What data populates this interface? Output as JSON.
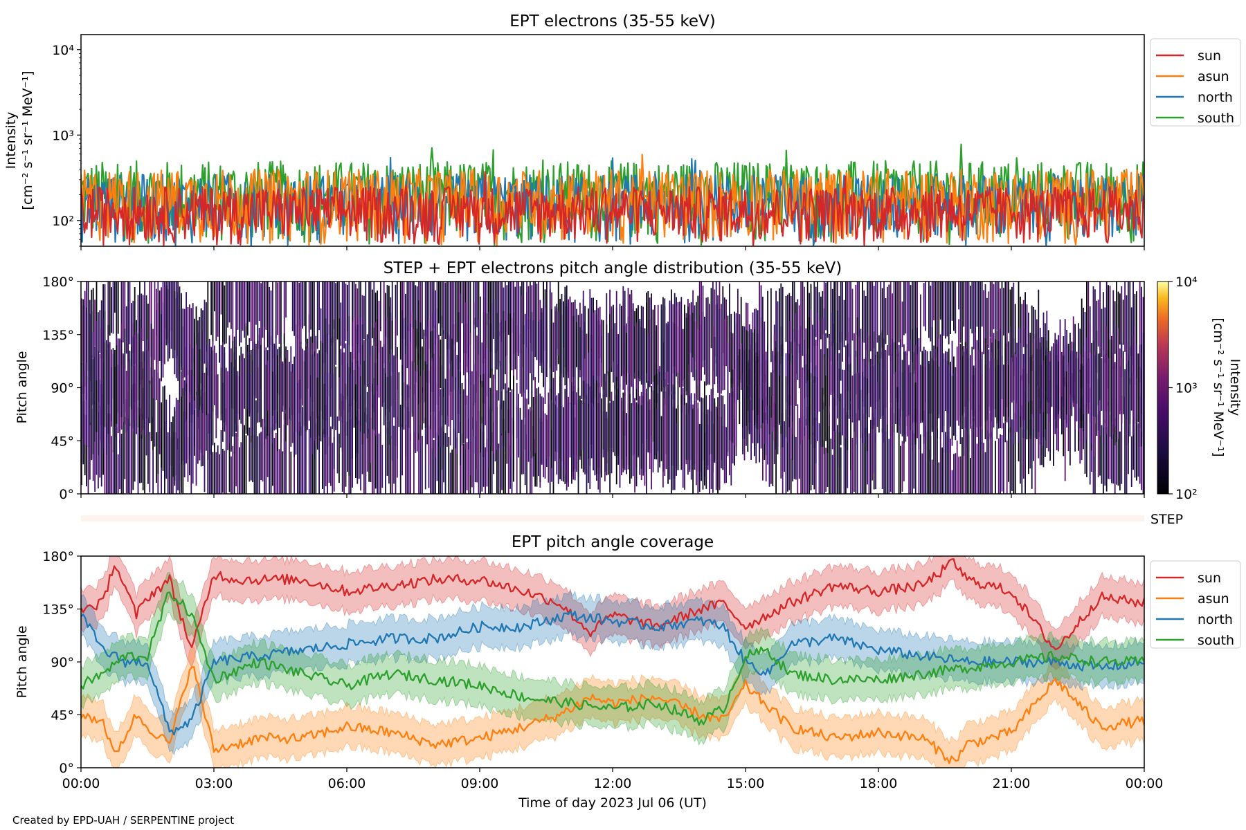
{
  "footer": "Created by EPD-UAH / SERPENTINE project",
  "x_axis": {
    "label": "Time of day 2023 Jul 06 (UT)",
    "ticks": [
      "00:00",
      "03:00",
      "06:00",
      "09:00",
      "12:00",
      "15:00",
      "18:00",
      "21:00",
      "00:00"
    ],
    "range_hours": [
      0,
      24
    ]
  },
  "colors": {
    "sun": "#d62728",
    "asun": "#ff7f0e",
    "north": "#1f77b4",
    "south": "#2ca02c"
  },
  "chart_data": [
    {
      "type": "line",
      "title": "EPT electrons (35-55 keV)",
      "ylabel_line1": "Intensity",
      "ylabel_line2": "[cm⁻² s⁻¹ sr⁻¹ MeV⁻¹]",
      "yscale": "log",
      "ylim": [
        50,
        15000
      ],
      "yticks": [
        {
          "value": 100,
          "label": "10²"
        },
        {
          "value": 1000,
          "label": "10³"
        },
        {
          "value": 10000,
          "label": "10⁴"
        }
      ],
      "legend_position": "outside-right-top",
      "series": [
        {
          "name": "sun",
          "color": "#d62728",
          "typical_range": [
            50,
            250
          ]
        },
        {
          "name": "asun",
          "color": "#ff7f0e",
          "typical_range": [
            50,
            400
          ]
        },
        {
          "name": "north",
          "color": "#1f77b4",
          "typical_range": [
            50,
            350
          ]
        },
        {
          "name": "south",
          "color": "#2ca02c",
          "typical_range": [
            50,
            500
          ]
        }
      ]
    },
    {
      "type": "heatmap",
      "title": "STEP + EPT electrons pitch angle distribution (35-55 keV)",
      "ylabel": "Pitch angle",
      "ylim": [
        0,
        180
      ],
      "yticks": [
        "0°",
        "45°",
        "90°",
        "135°",
        "180°"
      ],
      "colorbar": {
        "label_line1": "Intensity",
        "label_line2": "[cm⁻² s⁻¹ sr⁻¹ MeV⁻¹]",
        "range": [
          100,
          10000
        ],
        "ticks": [
          "10²",
          "10³",
          "10⁴"
        ]
      },
      "step_label": "STEP"
    },
    {
      "type": "line",
      "title": "EPT pitch angle coverage",
      "ylabel": "Pitch angle",
      "ylim": [
        0,
        180
      ],
      "yticks": [
        "0°",
        "45°",
        "90°",
        "135°",
        "180°"
      ],
      "legend_position": "outside-right-top",
      "series": [
        {
          "name": "sun",
          "color": "#d62728",
          "x": [
            0,
            0.5,
            0.75,
            1.25,
            1.5,
            2,
            2.5,
            3,
            3.5,
            4,
            5,
            6,
            7,
            8,
            9,
            10,
            10.8,
            11.5,
            12,
            13,
            14,
            14.5,
            15,
            16,
            17,
            18,
            19,
            19.7,
            20,
            21,
            22,
            23,
            24
          ],
          "y": [
            135,
            140,
            175,
            130,
            145,
            160,
            100,
            165,
            160,
            160,
            160,
            150,
            155,
            160,
            160,
            150,
            140,
            115,
            130,
            120,
            135,
            140,
            120,
            140,
            155,
            150,
            155,
            175,
            160,
            150,
            100,
            145,
            140
          ]
        },
        {
          "name": "asun",
          "color": "#ff7f0e",
          "x": [
            0,
            0.5,
            0.75,
            1.25,
            1.5,
            2,
            2.5,
            3,
            3.5,
            4,
            5,
            6,
            7,
            8,
            9,
            10,
            10.8,
            11.5,
            12,
            13,
            14,
            14.5,
            15,
            16,
            17,
            18,
            19,
            19.7,
            20,
            21,
            22,
            23,
            24
          ],
          "y": [
            45,
            40,
            10,
            45,
            35,
            20,
            90,
            15,
            20,
            25,
            25,
            35,
            30,
            20,
            25,
            35,
            45,
            60,
            55,
            60,
            45,
            40,
            70,
            35,
            25,
            30,
            25,
            5,
            20,
            30,
            75,
            35,
            40
          ]
        },
        {
          "name": "north",
          "color": "#1f77b4",
          "x": [
            0,
            0.5,
            1,
            1.5,
            2,
            2.5,
            3,
            4,
            5,
            6,
            7,
            8,
            9,
            10,
            11,
            12,
            13,
            14,
            14.5,
            15,
            15.5,
            16,
            17,
            18,
            19,
            20,
            21,
            22,
            23,
            24
          ],
          "y": [
            130,
            100,
            90,
            90,
            30,
            40,
            90,
            95,
            100,
            105,
            110,
            110,
            120,
            120,
            130,
            125,
            120,
            125,
            120,
            90,
            80,
            105,
            110,
            100,
            95,
            90,
            90,
            90,
            85,
            90
          ]
        },
        {
          "name": "south",
          "color": "#2ca02c",
          "x": [
            0,
            0.5,
            1,
            1.5,
            2,
            2.5,
            3,
            4,
            5,
            6,
            7,
            8,
            9,
            10,
            11,
            12,
            13,
            14,
            14.5,
            15,
            15.5,
            16,
            17,
            18,
            19,
            20,
            21,
            22,
            23,
            24
          ],
          "y": [
            70,
            80,
            95,
            95,
            150,
            130,
            75,
            90,
            80,
            70,
            80,
            75,
            70,
            60,
            55,
            50,
            55,
            40,
            50,
            95,
            100,
            80,
            75,
            75,
            80,
            85,
            90,
            95,
            90,
            90
          ]
        }
      ]
    }
  ]
}
